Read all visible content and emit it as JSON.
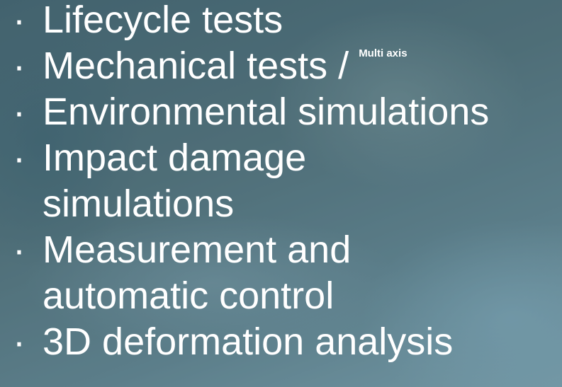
{
  "bullet": "·",
  "items": [
    {
      "lines": [
        "Lifecycle tests"
      ]
    },
    {
      "lines": [
        "Mechanical tests /"
      ],
      "note": "Multi axis"
    },
    {
      "lines": [
        "Environmental simulations"
      ]
    },
    {
      "lines": [
        "Impact damage",
        "simulations"
      ]
    },
    {
      "lines": [
        "Measurement and",
        "automatic control"
      ]
    },
    {
      "lines": [
        "3D deformation analysis"
      ]
    }
  ]
}
